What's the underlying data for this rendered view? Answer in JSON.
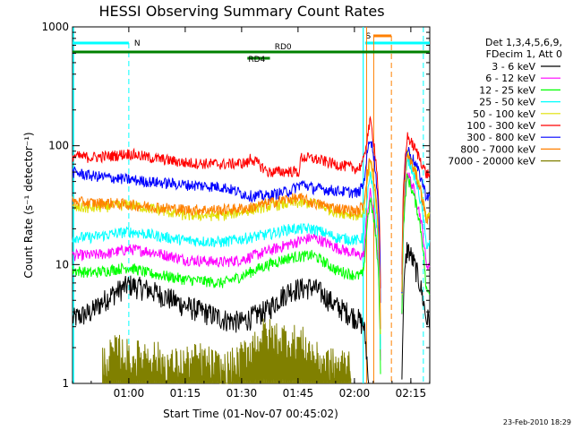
{
  "chart_data": {
    "type": "line",
    "title": "HESSI Observing Summary Count Rates",
    "xlabel": "Start Time (01-Nov-07 00:45:02)",
    "ylabel": "Count Rate (s⁻¹ detector⁻¹)",
    "y_scale": "log",
    "ylim": [
      1,
      1000
    ],
    "xlim_minutes_after_start": [
      0,
      95
    ],
    "x_ticks": [
      {
        "label": "01:00",
        "t": 14.97
      },
      {
        "label": "01:15",
        "t": 29.97
      },
      {
        "label": "01:30",
        "t": 44.97
      },
      {
        "label": "01:45",
        "t": 59.97
      },
      {
        "label": "02:00",
        "t": 74.97
      },
      {
        "label": "02:15",
        "t": 89.97
      }
    ],
    "y_ticks": [
      {
        "label": "1",
        "v": 1
      },
      {
        "label": "10",
        "v": 10
      },
      {
        "label": "100",
        "v": 100
      },
      {
        "label": "1000",
        "v": 1000
      }
    ],
    "legend_header": [
      "Det 1,3,4,5,6,9,",
      "FDecim 1, Att 0"
    ],
    "legend_position": "right",
    "series": [
      {
        "name": "3 - 6 keV",
        "color": "#000000",
        "x": [
          0,
          5,
          10,
          15,
          20,
          30,
          40,
          45,
          52,
          58,
          64,
          70,
          76,
          77.5,
          79.2,
          82,
          86,
          87.5,
          89,
          94
        ],
        "y": [
          3.5,
          4,
          5.5,
          6.8,
          6.2,
          4.5,
          3.5,
          3.3,
          4.2,
          6.2,
          6.5,
          4.5,
          3.5,
          3,
          0,
          0,
          0,
          0,
          14,
          3.5
        ]
      },
      {
        "name": "6 - 12 keV",
        "color": "#ff00ff",
        "x": [
          0,
          5,
          10,
          15,
          20,
          30,
          40,
          45,
          52,
          58,
          64,
          70,
          76,
          77.5,
          79.2,
          82,
          86,
          87.5,
          89,
          94
        ],
        "y": [
          12,
          12,
          12.5,
          13.5,
          13,
          11,
          10.5,
          11,
          13,
          15,
          17,
          14,
          12,
          12,
          40,
          0,
          0,
          0,
          60,
          10
        ]
      },
      {
        "name": "12 - 25 keV",
        "color": "#00ff00",
        "x": [
          0,
          5,
          10,
          15,
          20,
          30,
          40,
          45,
          52,
          58,
          64,
          70,
          76,
          77.5,
          79.2,
          82,
          86,
          87.5,
          89,
          94
        ],
        "y": [
          9,
          8.5,
          9,
          9.5,
          8.5,
          7.5,
          7,
          8,
          10,
          11.5,
          12,
          9,
          8,
          8.5,
          35,
          0,
          0,
          0,
          55,
          6
        ]
      },
      {
        "name": "25 - 50 keV",
        "color": "#00ffff",
        "x": [
          0,
          5,
          10,
          15,
          20,
          30,
          40,
          45,
          52,
          58,
          64,
          70,
          76,
          77.5,
          79.2,
          82,
          86,
          87.5,
          89,
          94
        ],
        "y": [
          17,
          17,
          18,
          19,
          18,
          16,
          15.5,
          16.5,
          18,
          20,
          20,
          17,
          16,
          17,
          55,
          0,
          0,
          0,
          80,
          15
        ]
      },
      {
        "name": "50 - 100 keV",
        "color": "#e0e000",
        "x": [
          0,
          5,
          10,
          15,
          20,
          30,
          40,
          45,
          52,
          58,
          64,
          70,
          76,
          77.5,
          79.2,
          82,
          86,
          87.5,
          89,
          94
        ],
        "y": [
          30,
          30,
          31,
          32,
          30,
          26,
          26,
          28,
          31,
          33,
          33,
          28,
          26,
          28,
          70,
          0,
          0,
          0,
          90,
          25
        ]
      },
      {
        "name": "100 - 300 keV",
        "color": "#ff0000",
        "x": [
          0,
          5,
          10,
          15,
          20,
          30,
          40,
          47,
          47.1,
          52,
          58,
          60.5,
          60.6,
          64,
          70,
          76,
          77.5,
          79.2,
          82,
          86,
          87.5,
          89,
          94
        ],
        "y": [
          82,
          80,
          82,
          86,
          80,
          72,
          70,
          72,
          80,
          60,
          61,
          60,
          80,
          78,
          70,
          64,
          75,
          160,
          0,
          0,
          0,
          120,
          58
        ]
      },
      {
        "name": "300 - 800 keV",
        "color": "#0000ff",
        "x": [
          0,
          5,
          10,
          15,
          20,
          30,
          40,
          47,
          52,
          58,
          61,
          64,
          70,
          76,
          77.5,
          79.2,
          82,
          86,
          87.5,
          89,
          94
        ],
        "y": [
          60,
          56,
          54,
          52,
          50,
          47,
          45,
          38,
          38,
          42,
          48,
          44,
          42,
          40,
          48,
          120,
          0,
          0,
          0,
          95,
          38
        ]
      },
      {
        "name": "800 - 7000 keV",
        "color": "#ff8000",
        "x": [
          0,
          5,
          10,
          15,
          20,
          30,
          40,
          47,
          52,
          58,
          61,
          64,
          70,
          76,
          77.5,
          79.2,
          82,
          86,
          87.5,
          89,
          94
        ],
        "y": [
          34,
          33,
          33,
          32,
          31,
          29,
          29,
          30,
          33,
          36,
          36,
          33,
          30,
          28,
          33,
          80,
          0,
          0,
          0,
          85,
          24
        ]
      },
      {
        "name": "7000 - 20000 keV",
        "color": "#808000",
        "x": [
          8,
          12,
          16,
          20,
          26,
          34,
          40,
          44,
          51,
          56,
          61,
          65,
          70,
          74
        ],
        "y": [
          1.5,
          1.9,
          1.6,
          1.8,
          1.4,
          1.6,
          1.3,
          1.5,
          2.6,
          2.4,
          2.2,
          1.6,
          1.4,
          1.5
        ]
      }
    ],
    "annotations": [
      {
        "label": "N",
        "t": 14.97
      },
      {
        "label": "S",
        "t": 78.2
      },
      {
        "label": "RD0",
        "t": 56
      },
      {
        "label": "RD4",
        "t": 49
      }
    ]
  },
  "footer": {
    "timestamp": "23-Feb-2010 18:29"
  },
  "colors": {
    "night": "#00ffff",
    "saa": "#ff8000",
    "decimation": "#008000",
    "flare_marker": "#ff8000",
    "attenuator": "#808000"
  }
}
